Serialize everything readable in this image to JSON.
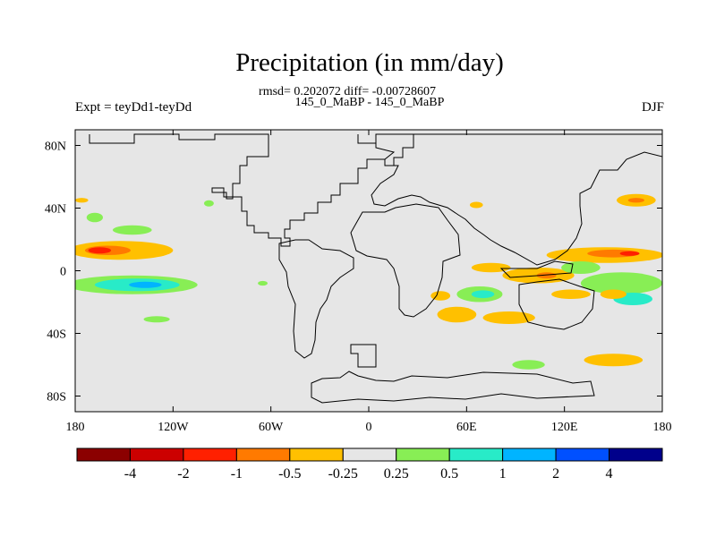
{
  "chart_data": {
    "type": "heatmap",
    "title": "Precipitation (in mm/day)",
    "stats_line": "rmsd= 0.202072 diff= -0.00728607",
    "case_line": "145_0_MaBP - 145_0_MaBP",
    "left_label": "Expt = teyDd1-teyDd",
    "right_label": "DJF",
    "x_ticks": [
      {
        "value": -180,
        "label": "180"
      },
      {
        "value": -120,
        "label": "120W"
      },
      {
        "value": -60,
        "label": "60W"
      },
      {
        "value": 0,
        "label": "0"
      },
      {
        "value": 60,
        "label": "60E"
      },
      {
        "value": 120,
        "label": "120E"
      },
      {
        "value": 180,
        "label": "180"
      }
    ],
    "y_ticks": [
      {
        "value": 80,
        "label": "80N"
      },
      {
        "value": 40,
        "label": "40N"
      },
      {
        "value": 0,
        "label": "0"
      },
      {
        "value": -40,
        "label": "40S"
      },
      {
        "value": -80,
        "label": "80S"
      }
    ],
    "xlim": [
      -180,
      180
    ],
    "ylim": [
      -90,
      90
    ],
    "colorbar": {
      "colors": [
        "#8b0000",
        "#cc0000",
        "#ff2000",
        "#ff7a00",
        "#ffc000",
        "#e6e6e6",
        "#88ee55",
        "#28ebc8",
        "#00b4ff",
        "#0050ff",
        "#00008b"
      ],
      "labels": [
        "-4",
        "-2",
        "-1",
        "-0.5",
        "-0.25",
        "0.25",
        "0.5",
        "1",
        "2",
        "4"
      ]
    },
    "anomalies": [
      {
        "lon": -152,
        "lat": 13,
        "rlon": 32,
        "rlat": 6,
        "level": 4
      },
      {
        "lon": -160,
        "lat": 13,
        "rlon": 14,
        "rlat": 3,
        "level": 3
      },
      {
        "lon": -165,
        "lat": 13,
        "rlon": 7,
        "rlat": 2,
        "level": 2
      },
      {
        "lon": -145,
        "lat": -9,
        "rlon": 40,
        "rlat": 6,
        "level": 6
      },
      {
        "lon": -142,
        "lat": -9,
        "rlon": 26,
        "rlat": 4,
        "level": 7
      },
      {
        "lon": -137,
        "lat": -9,
        "rlon": 10,
        "rlat": 2,
        "level": 8
      },
      {
        "lon": -145,
        "lat": 26,
        "rlon": 12,
        "rlat": 3,
        "level": 6
      },
      {
        "lon": -168,
        "lat": 34,
        "rlon": 5,
        "rlat": 3,
        "level": 6
      },
      {
        "lon": -176,
        "lat": 45,
        "rlon": 4,
        "rlat": 1.5,
        "level": 4
      },
      {
        "lon": -65,
        "lat": -8,
        "rlon": 3,
        "rlat": 1.5,
        "level": 6
      },
      {
        "lon": 68,
        "lat": -15,
        "rlon": 14,
        "rlat": 5,
        "level": 6
      },
      {
        "lon": 70,
        "lat": -15,
        "rlon": 7,
        "rlat": 2.5,
        "level": 7
      },
      {
        "lon": 44,
        "lat": -16,
        "rlon": 6,
        "rlat": 3,
        "level": 4
      },
      {
        "lon": 54,
        "lat": -28,
        "rlon": 12,
        "rlat": 5,
        "level": 4
      },
      {
        "lon": 86,
        "lat": -30,
        "rlon": 16,
        "rlat": 4,
        "level": 4
      },
      {
        "lon": 75,
        "lat": 2,
        "rlon": 12,
        "rlat": 3,
        "level": 4
      },
      {
        "lon": 104,
        "lat": -3,
        "rlon": 22,
        "rlat": 5,
        "level": 4
      },
      {
        "lon": 109,
        "lat": -3,
        "rlon": 6,
        "rlat": 2,
        "level": 3
      },
      {
        "lon": 145,
        "lat": 10,
        "rlon": 36,
        "rlat": 5,
        "level": 4
      },
      {
        "lon": 150,
        "lat": 11,
        "rlon": 16,
        "rlat": 2.5,
        "level": 3
      },
      {
        "lon": 160,
        "lat": 11,
        "rlon": 6,
        "rlat": 1.5,
        "level": 2
      },
      {
        "lon": 130,
        "lat": 2,
        "rlon": 12,
        "rlat": 4,
        "level": 6
      },
      {
        "lon": 155,
        "lat": -8,
        "rlon": 25,
        "rlat": 7,
        "level": 6
      },
      {
        "lon": 162,
        "lat": -18,
        "rlon": 12,
        "rlat": 4,
        "level": 7
      },
      {
        "lon": 124,
        "lat": -15,
        "rlon": 12,
        "rlat": 3,
        "level": 4
      },
      {
        "lon": 150,
        "lat": -15,
        "rlon": 8,
        "rlat": 3,
        "level": 4
      },
      {
        "lon": 164,
        "lat": 45,
        "rlon": 12,
        "rlat": 4,
        "level": 4
      },
      {
        "lon": 164,
        "lat": 45,
        "rlon": 5,
        "rlat": 1.5,
        "level": 3
      },
      {
        "lon": 150,
        "lat": -57,
        "rlon": 18,
        "rlat": 4,
        "level": 4
      },
      {
        "lon": 98,
        "lat": -60,
        "rlon": 10,
        "rlat": 3,
        "level": 6
      },
      {
        "lon": 66,
        "lat": 42,
        "rlon": 4,
        "rlat": 2,
        "level": 4
      },
      {
        "lon": -98,
        "lat": 43,
        "rlon": 3,
        "rlat": 2,
        "level": 6
      },
      {
        "lon": -130,
        "lat": -31,
        "rlon": 8,
        "rlat": 2,
        "level": 6
      }
    ]
  }
}
